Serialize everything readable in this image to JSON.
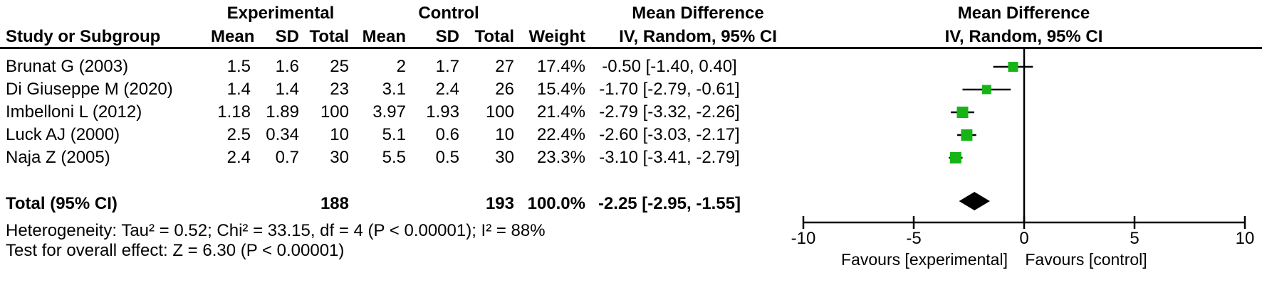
{
  "figure": {
    "group_headers": {
      "experimental": "Experimental",
      "control": "Control",
      "mean_difference_left": "Mean Difference",
      "mean_difference_right": "Mean Difference"
    },
    "column_headers": {
      "study": "Study or Subgroup",
      "mean_e": "Mean",
      "sd_e": "SD",
      "total_e": "Total",
      "mean_c": "Mean",
      "sd_c": "SD",
      "total_c": "Total",
      "weight": "Weight",
      "ci_left": "IV, Random, 95% CI",
      "ci_right": "IV, Random, 95% CI"
    },
    "rows": [
      {
        "study": "Brunat G (2003)",
        "mean_e": "1.5",
        "sd_e": "1.6",
        "total_e": "25",
        "mean_c": "2",
        "sd_c": "1.7",
        "total_c": "27",
        "weight": "17.4%",
        "ci": "-0.50 [-1.40, 0.40]"
      },
      {
        "study": "Di Giuseppe M (2020)",
        "mean_e": "1.4",
        "sd_e": "1.4",
        "total_e": "23",
        "mean_c": "3.1",
        "sd_c": "2.4",
        "total_c": "26",
        "weight": "15.4%",
        "ci": "-1.70 [-2.79, -0.61]"
      },
      {
        "study": "Imbelloni L (2012)",
        "mean_e": "1.18",
        "sd_e": "1.89",
        "total_e": "100",
        "mean_c": "3.97",
        "sd_c": "1.93",
        "total_c": "100",
        "weight": "21.4%",
        "ci": "-2.79 [-3.32, -2.26]"
      },
      {
        "study": "Luck AJ (2000)",
        "mean_e": "2.5",
        "sd_e": "0.34",
        "total_e": "10",
        "mean_c": "5.1",
        "sd_c": "0.6",
        "total_c": "10",
        "weight": "22.4%",
        "ci": "-2.60 [-3.03, -2.17]"
      },
      {
        "study": "Naja Z (2005)",
        "mean_e": "2.4",
        "sd_e": "0.7",
        "total_e": "30",
        "mean_c": "5.5",
        "sd_c": "0.5",
        "total_c": "30",
        "weight": "23.3%",
        "ci": "-3.10 [-3.41, -2.79]"
      }
    ],
    "total_row": {
      "label": "Total (95% CI)",
      "total_e": "188",
      "total_c": "193",
      "weight": "100.0%",
      "ci": "-2.25 [-2.95, -1.55]"
    },
    "heterogeneity": "Heterogeneity: Tau² = 0.52; Chi² = 33.15, df = 4 (P < 0.00001); I² = 88%",
    "overall_effect": "Test for overall effect: Z = 6.30 (P < 0.00001)"
  },
  "chart_data": {
    "type": "forest",
    "effect_measure": "Mean Difference",
    "method": "IV, Random, 95% CI",
    "axis": {
      "min": -10,
      "max": 10,
      "ticks": [
        -10,
        -5,
        0,
        5,
        10
      ],
      "tick_labels": [
        "-10",
        "-5",
        "0",
        "5",
        "10"
      ],
      "zero_line": 0
    },
    "studies": [
      {
        "name": "Brunat G (2003)",
        "md": -0.5,
        "ci_low": -1.4,
        "ci_high": 0.4,
        "weight": 17.4
      },
      {
        "name": "Di Giuseppe M (2020)",
        "md": -1.7,
        "ci_low": -2.79,
        "ci_high": -0.61,
        "weight": 15.4
      },
      {
        "name": "Imbelloni L (2012)",
        "md": -2.79,
        "ci_low": -3.32,
        "ci_high": -2.26,
        "weight": 21.4
      },
      {
        "name": "Luck AJ (2000)",
        "md": -2.6,
        "ci_low": -3.03,
        "ci_high": -2.17,
        "weight": 22.4
      },
      {
        "name": "Naja Z (2005)",
        "md": -3.1,
        "ci_low": -3.41,
        "ci_high": -2.79,
        "weight": 23.3
      }
    ],
    "total": {
      "md": -2.25,
      "ci_low": -2.95,
      "ci_high": -1.55
    },
    "footer_left": "Favours [experimental]",
    "footer_right": "Favours [control]",
    "colors": {
      "square": "#17b417",
      "line": "#000000",
      "diamond": "#000000"
    }
  }
}
